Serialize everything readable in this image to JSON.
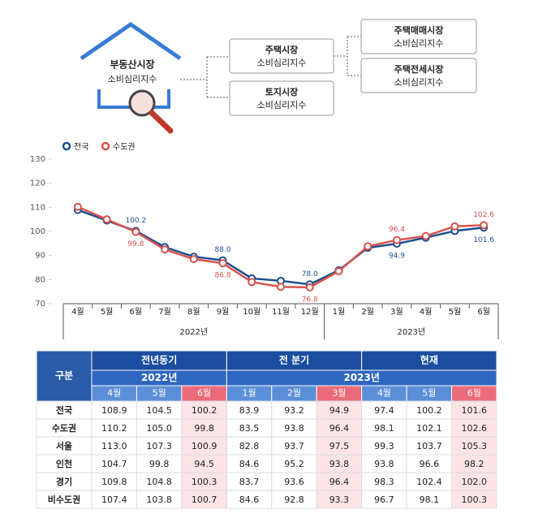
{
  "diagram": {
    "nodes": [
      {
        "title": "부동산시장",
        "subtitle": "소비심리지수"
      },
      {
        "title": "주택시장",
        "subtitle": "소비심리지수"
      },
      {
        "title": "토지시장",
        "subtitle": "소비심리지수"
      },
      {
        "title": "주택매매시장",
        "subtitle": "소비심리지수"
      },
      {
        "title": "주택전세시장",
        "subtitle": "소비심리지수"
      }
    ]
  },
  "chart_data": {
    "type": "line",
    "categories": [
      "4월",
      "5월",
      "6월",
      "7월",
      "8월",
      "9월",
      "10월",
      "11월",
      "12월",
      "1월",
      "2월",
      "3월",
      "4월",
      "5월",
      "6월"
    ],
    "category_groups": [
      "2022년",
      "2022년",
      "2022년",
      "2022년",
      "2022년",
      "2022년",
      "2022년",
      "2022년",
      "2022년",
      "2023년",
      "2023년",
      "2023년",
      "2023년",
      "2023년",
      "2023년"
    ],
    "series": [
      {
        "name": "전국",
        "color": "#1d4f91",
        "values": [
          108.9,
          104.5,
          100.2,
          93.5,
          89.5,
          88.0,
          80.5,
          79.5,
          78.0,
          83.9,
          93.2,
          94.9,
          97.4,
          100.2,
          101.6
        ],
        "value_labels": [
          null,
          null,
          "100.2",
          null,
          null,
          "88.0",
          null,
          null,
          "78.0",
          null,
          null,
          "94.9",
          null,
          null,
          "101.6"
        ]
      },
      {
        "name": "수도권",
        "color": "#d9534f",
        "values": [
          110.2,
          105.0,
          99.8,
          92.5,
          88.5,
          86.8,
          79.0,
          77.0,
          76.8,
          83.5,
          93.8,
          96.4,
          98.1,
          102.1,
          102.6
        ],
        "value_labels": [
          null,
          null,
          "99.8",
          null,
          null,
          "86.8",
          null,
          null,
          "76.8",
          null,
          null,
          "96.4",
          null,
          null,
          "102.6"
        ]
      }
    ],
    "ylim": [
      70,
      130
    ],
    "yticks": [
      70,
      80,
      90,
      100,
      110,
      120,
      130
    ],
    "grid": false,
    "legend": "top-left"
  },
  "table": {
    "corner": "구분",
    "periods": [
      "전년동기",
      "전 분기",
      "현재"
    ],
    "years": [
      "2022년",
      "2023년"
    ],
    "months": [
      "4월",
      "5월",
      "6월",
      "1월",
      "2월",
      "3월",
      "4월",
      "5월",
      "6월"
    ],
    "rows": [
      [
        "전국",
        "108.9",
        "104.5",
        "100.2",
        "83.9",
        "93.2",
        "94.9",
        "97.4",
        "100.2",
        "101.6"
      ],
      [
        "수도권",
        "110.2",
        "105.0",
        "99.8",
        "83.5",
        "93.8",
        "96.4",
        "98.1",
        "102.1",
        "102.6"
      ],
      [
        "서울",
        "113.0",
        "107.3",
        "100.9",
        "82.8",
        "93.7",
        "97.5",
        "99.3",
        "103.7",
        "105.3"
      ],
      [
        "인천",
        "104.7",
        "99.8",
        "94.5",
        "84.6",
        "95.2",
        "93.8",
        "93.8",
        "96.6",
        "98.2"
      ],
      [
        "경기",
        "109.8",
        "104.8",
        "100.3",
        "83.7",
        "93.6",
        "96.4",
        "98.3",
        "102.4",
        "102.0"
      ],
      [
        "비수도권",
        "107.4",
        "103.8",
        "100.7",
        "84.6",
        "92.8",
        "93.3",
        "96.7",
        "98.1",
        "100.3"
      ]
    ]
  }
}
